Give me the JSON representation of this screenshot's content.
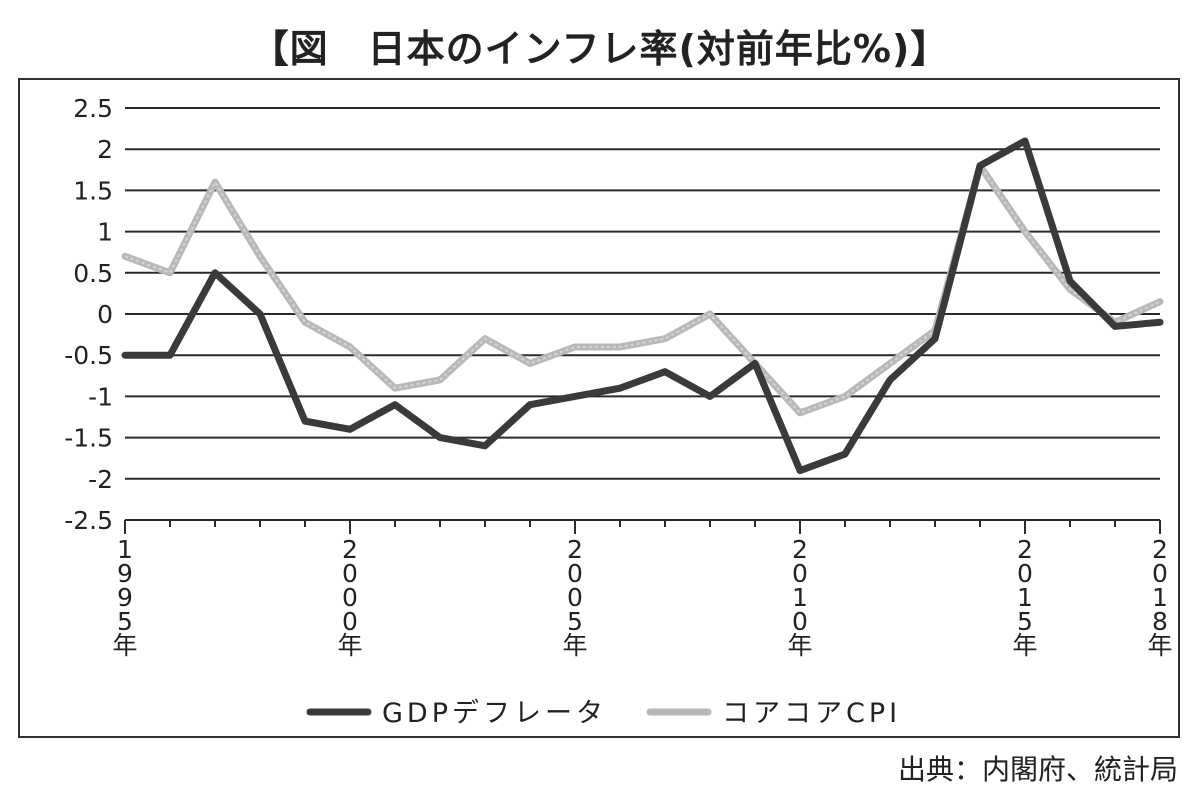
{
  "title": "【図　日本のインフレ率(対前年比%)】",
  "source": "出典：内閣府、統計局",
  "chart_data": {
    "type": "line",
    "title": "【図　日本のインフレ率(対前年比%)】",
    "xlabel": "",
    "ylabel": "",
    "ylim": [
      -2.5,
      2.5
    ],
    "yticks": [
      2.5,
      2,
      1.5,
      1,
      0.5,
      0,
      -0.5,
      -1,
      -1.5,
      -2,
      -2.5
    ],
    "ytick_labels": [
      "2.5",
      "2",
      "1.5",
      "1",
      "0.5",
      "0",
      "-0.5",
      "-1",
      "-1.5",
      "-2",
      "-2.5"
    ],
    "grid": true,
    "legend": "bottom",
    "x": [
      1995,
      1996,
      1997,
      1998,
      1999,
      2000,
      2001,
      2002,
      2003,
      2004,
      2005,
      2006,
      2007,
      2008,
      2009,
      2010,
      2011,
      2012,
      2013,
      2014,
      2015,
      2016,
      2017,
      2018
    ],
    "xticks": [
      {
        "year": 1995,
        "label": "1995年"
      },
      {
        "year": 2000,
        "label": "2000年"
      },
      {
        "year": 2005,
        "label": "2005年"
      },
      {
        "year": 2010,
        "label": "2010年"
      },
      {
        "year": 2015,
        "label": "2015年"
      },
      {
        "year": 2018,
        "label": "2018年"
      }
    ],
    "series": [
      {
        "name": "GDPデフレータ",
        "color": "#3a3a3a",
        "values": [
          -0.5,
          -0.5,
          0.5,
          0.0,
          -1.3,
          -1.4,
          -1.1,
          -1.5,
          -1.6,
          -1.1,
          -1.0,
          -0.9,
          -0.7,
          -1.0,
          -0.6,
          -1.9,
          -1.7,
          -0.8,
          -0.3,
          1.8,
          2.1,
          0.4,
          -0.15,
          -0.1
        ]
      },
      {
        "name": "コアコアCPI",
        "color": "#b8b8b8",
        "values": [
          0.7,
          0.5,
          1.6,
          0.7,
          -0.1,
          -0.4,
          -0.9,
          -0.8,
          -0.3,
          -0.6,
          -0.4,
          -0.4,
          -0.3,
          0.0,
          -0.6,
          -1.2,
          -1.0,
          -0.6,
          -0.2,
          1.8,
          1.0,
          0.3,
          -0.1,
          0.15
        ]
      }
    ]
  }
}
